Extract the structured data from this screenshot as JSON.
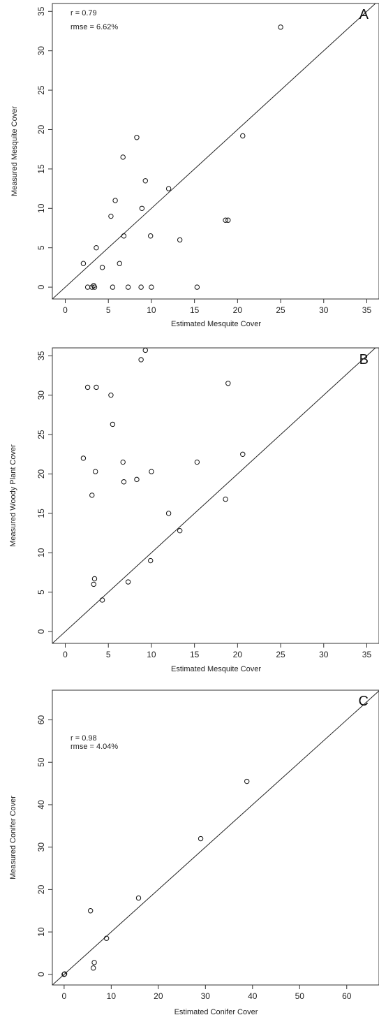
{
  "chart_data": [
    {
      "type": "scatter",
      "panel_label": "A",
      "xlabel": "Estimated Mesquite Cover",
      "ylabel": "Measured Mesquite Cover",
      "xlim": [
        -1.5,
        36.5
      ],
      "ylim": [
        -1.5,
        36
      ],
      "xticks": [
        0,
        5,
        10,
        15,
        20,
        25,
        30,
        35
      ],
      "yticks": [
        0,
        5,
        10,
        15,
        20,
        25,
        30,
        35
      ],
      "annotations": [
        "r = 0.79",
        "rmse = 6.62%"
      ],
      "reference_line": "1:1",
      "grid": false,
      "points": [
        {
          "x": 2.1,
          "y": 3.0
        },
        {
          "x": 2.6,
          "y": 0.0
        },
        {
          "x": 3.1,
          "y": 0.0
        },
        {
          "x": 3.3,
          "y": 0.2
        },
        {
          "x": 3.4,
          "y": 0.0
        },
        {
          "x": 3.6,
          "y": 5.0
        },
        {
          "x": 4.3,
          "y": 2.5
        },
        {
          "x": 5.3,
          "y": 9.0
        },
        {
          "x": 5.5,
          "y": 0.0
        },
        {
          "x": 5.8,
          "y": 11.0
        },
        {
          "x": 6.3,
          "y": 3.0
        },
        {
          "x": 6.7,
          "y": 16.5
        },
        {
          "x": 6.8,
          "y": 6.5
        },
        {
          "x": 7.3,
          "y": 0.0
        },
        {
          "x": 8.3,
          "y": 19.0
        },
        {
          "x": 8.8,
          "y": 0.0
        },
        {
          "x": 8.9,
          "y": 10.0
        },
        {
          "x": 9.3,
          "y": 13.5
        },
        {
          "x": 9.9,
          "y": 6.5
        },
        {
          "x": 10.0,
          "y": 0.0
        },
        {
          "x": 12.0,
          "y": 12.5
        },
        {
          "x": 13.3,
          "y": 6.0
        },
        {
          "x": 15.3,
          "y": 0.0
        },
        {
          "x": 18.6,
          "y": 8.5
        },
        {
          "x": 18.9,
          "y": 8.5
        },
        {
          "x": 20.6,
          "y": 19.2
        },
        {
          "x": 25.0,
          "y": 33.0
        }
      ]
    },
    {
      "type": "scatter",
      "panel_label": "B",
      "xlabel": "Estimated Mesquite Cover",
      "ylabel": "Measured Woody Plant Cover",
      "xlim": [
        -1.5,
        36.5
      ],
      "ylim": [
        -1.5,
        36
      ],
      "xticks": [
        0,
        5,
        10,
        15,
        20,
        25,
        30,
        35
      ],
      "yticks": [
        0,
        5,
        10,
        15,
        20,
        25,
        30,
        35
      ],
      "annotations": [],
      "reference_line": "1:1",
      "grid": false,
      "points": [
        {
          "x": 2.1,
          "y": 22.0
        },
        {
          "x": 2.6,
          "y": 31.0
        },
        {
          "x": 3.1,
          "y": 17.3
        },
        {
          "x": 3.3,
          "y": 6.0
        },
        {
          "x": 3.4,
          "y": 6.7
        },
        {
          "x": 3.5,
          "y": 20.3
        },
        {
          "x": 3.6,
          "y": 31.0
        },
        {
          "x": 4.3,
          "y": 4.0
        },
        {
          "x": 5.3,
          "y": 30.0
        },
        {
          "x": 5.5,
          "y": 26.3
        },
        {
          "x": 6.7,
          "y": 21.5
        },
        {
          "x": 6.8,
          "y": 19.0
        },
        {
          "x": 7.3,
          "y": 6.3
        },
        {
          "x": 8.3,
          "y": 19.3
        },
        {
          "x": 8.8,
          "y": 34.5
        },
        {
          "x": 9.3,
          "y": 35.7
        },
        {
          "x": 9.9,
          "y": 9.0
        },
        {
          "x": 10.0,
          "y": 20.3
        },
        {
          "x": 12.0,
          "y": 15.0
        },
        {
          "x": 13.3,
          "y": 12.8
        },
        {
          "x": 15.3,
          "y": 21.5
        },
        {
          "x": 18.6,
          "y": 16.8
        },
        {
          "x": 18.9,
          "y": 31.5
        },
        {
          "x": 20.6,
          "y": 22.5
        }
      ]
    },
    {
      "type": "scatter",
      "panel_label": "C",
      "xlabel": "Estimated Conifer Cover",
      "ylabel": "Measured Conifer Cover",
      "xlim": [
        -2.5,
        67
      ],
      "ylim": [
        -2.5,
        67
      ],
      "xticks": [
        0,
        10,
        20,
        30,
        40,
        50,
        60
      ],
      "yticks": [
        0,
        10,
        20,
        30,
        40,
        50,
        60
      ],
      "annotations": [
        "r = 0.98",
        "rmse = 4.04%"
      ],
      "reference_line": "1:1",
      "grid": false,
      "points": [
        {
          "x": 0.0,
          "y": 0.0
        },
        {
          "x": 0.1,
          "y": 0.1
        },
        {
          "x": 5.6,
          "y": 15.0
        },
        {
          "x": 6.2,
          "y": 1.5
        },
        {
          "x": 6.4,
          "y": 2.8
        },
        {
          "x": 9.0,
          "y": 8.5
        },
        {
          "x": 15.8,
          "y": 18.0
        },
        {
          "x": 29.0,
          "y": 32.0
        },
        {
          "x": 38.8,
          "y": 45.5
        }
      ]
    }
  ]
}
